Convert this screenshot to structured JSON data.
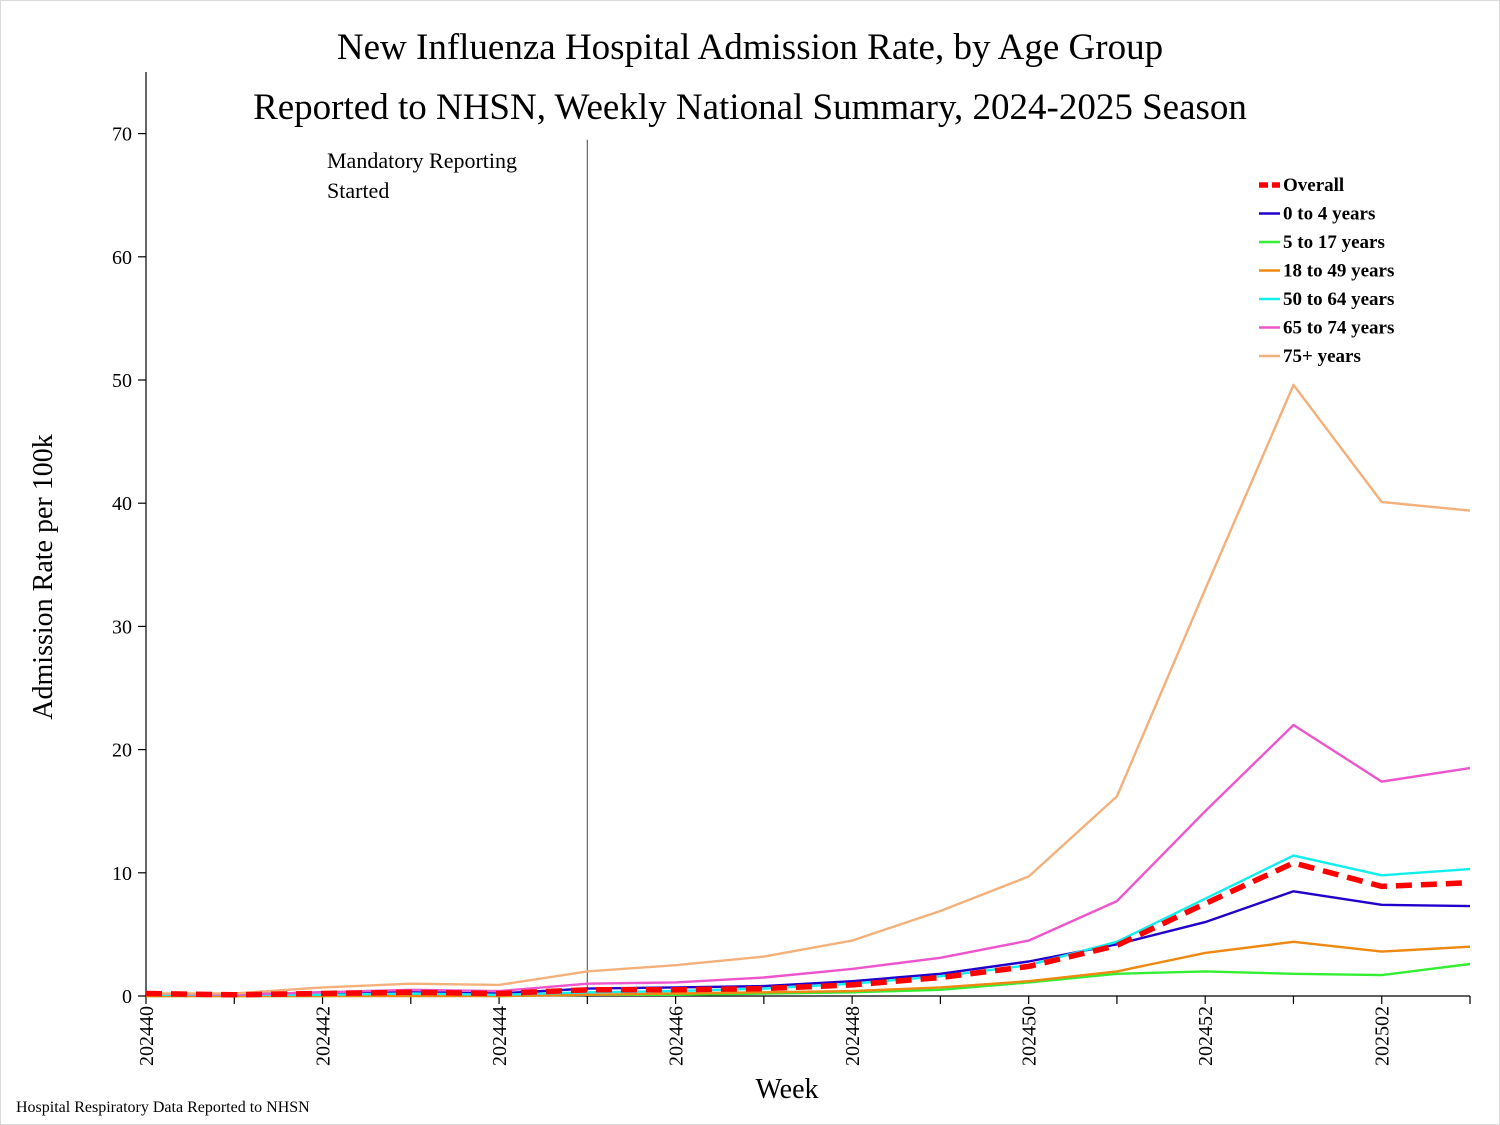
{
  "chart_data": {
    "type": "line",
    "title": "New Influenza Hospital Admission Rate, by Age Group",
    "subtitle": "Reported to NHSN, Weekly National Summary, 2024-2025 Season",
    "xlabel": "Week",
    "ylabel": "Admission Rate per 100k",
    "ylim": [
      0,
      75
    ],
    "yticks": [
      0,
      10,
      20,
      30,
      40,
      50,
      60,
      70
    ],
    "x": [
      "202440",
      "202441",
      "202442",
      "202443",
      "202444",
      "202445",
      "202446",
      "202447",
      "202448",
      "202449",
      "202450",
      "202451",
      "202452",
      "202453",
      "202502",
      "202503"
    ],
    "xtick_labels": [
      "202440",
      "202442",
      "202444",
      "202446",
      "202448",
      "202450",
      "202452",
      "202502"
    ],
    "grid": false,
    "legend_position": "top-right",
    "annotations": [
      {
        "text_line1": "Mandatory Reporting",
        "text_line2": "Started",
        "x": "202445"
      }
    ],
    "series": [
      {
        "name": "Overall",
        "color": "#ff0000",
        "dashed": true,
        "values": [
          0.2,
          0.1,
          0.2,
          0.3,
          0.2,
          0.5,
          0.5,
          0.6,
          0.9,
          1.5,
          2.4,
          4.1,
          7.5,
          10.8,
          8.9,
          9.2
        ]
      },
      {
        "name": "0 to 4 years",
        "color": "#2200cc",
        "dashed": false,
        "values": [
          0.1,
          0.1,
          0.3,
          0.3,
          0.2,
          0.6,
          0.7,
          0.8,
          1.2,
          1.8,
          2.8,
          4.2,
          6.0,
          8.5,
          7.4,
          7.3
        ]
      },
      {
        "name": "5 to 17 years",
        "color": "#33ee33",
        "dashed": false,
        "values": [
          0.0,
          0.0,
          0.0,
          0.1,
          0.0,
          0.1,
          0.1,
          0.2,
          0.3,
          0.5,
          1.1,
          1.8,
          2.0,
          1.8,
          1.7,
          2.6
        ]
      },
      {
        "name": "18 to 49 years",
        "color": "#ee8811",
        "dashed": false,
        "values": [
          0.0,
          0.0,
          0.0,
          0.0,
          0.0,
          0.1,
          0.2,
          0.3,
          0.4,
          0.7,
          1.2,
          2.0,
          3.5,
          4.4,
          3.6,
          4.0
        ]
      },
      {
        "name": "50 to 64 years",
        "color": "#11eeee",
        "dashed": false,
        "values": [
          0.1,
          0.1,
          0.1,
          0.2,
          0.1,
          0.3,
          0.4,
          0.6,
          1.0,
          1.6,
          2.5,
          4.4,
          7.9,
          11.4,
          9.8,
          10.3
        ]
      },
      {
        "name": "65 to 74 years",
        "color": "#ee55cc",
        "dashed": false,
        "values": [
          0.2,
          0.1,
          0.3,
          0.5,
          0.4,
          1.0,
          1.1,
          1.5,
          2.2,
          3.1,
          4.5,
          7.7,
          15.0,
          22.0,
          17.4,
          18.5
        ]
      },
      {
        "name": "75+ years",
        "color": "#f4b07a",
        "dashed": false,
        "values": [
          0.2,
          0.2,
          0.7,
          1.0,
          0.9,
          2.0,
          2.5,
          3.2,
          4.5,
          6.9,
          9.7,
          16.2,
          33.0,
          49.6,
          40.1,
          39.4
        ]
      }
    ],
    "source_note": "Hospital Respiratory Data Reported to NHSN"
  }
}
